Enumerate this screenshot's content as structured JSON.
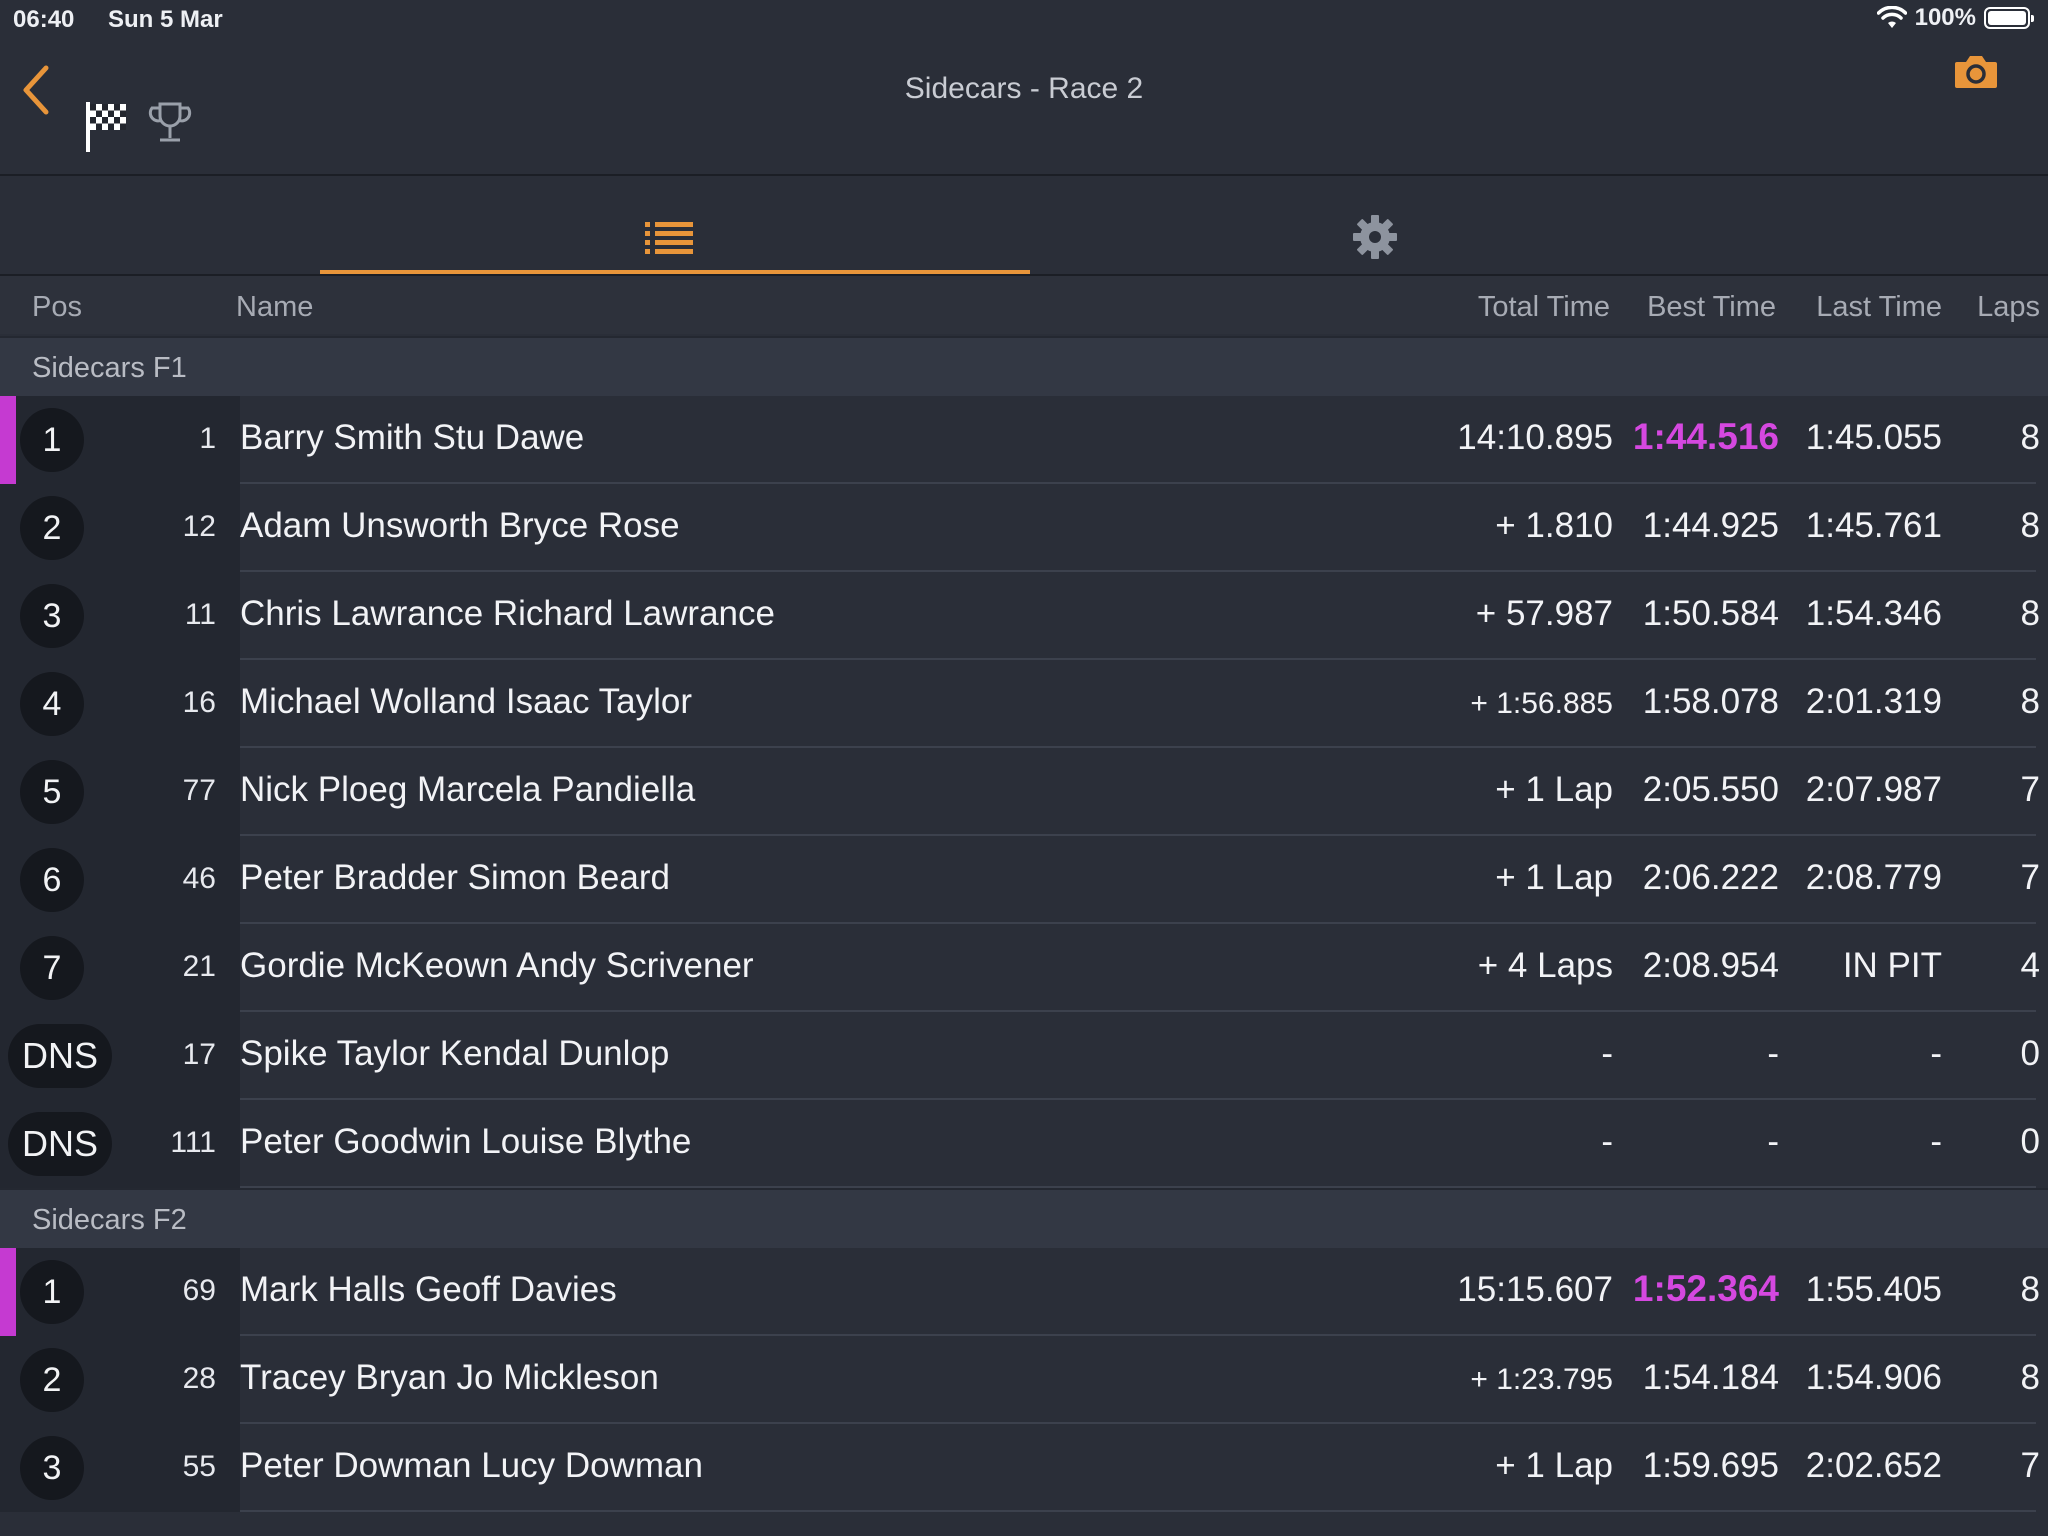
{
  "status": {
    "time": "06:40",
    "date": "Sun 5 Mar",
    "battery": "100%"
  },
  "nav": {
    "title": "Sidecars - Race 2"
  },
  "columns": {
    "pos": "Pos",
    "name": "Name",
    "total": "Total Time",
    "best": "Best Time",
    "last": "Last Time",
    "laps": "Laps"
  },
  "sections": [
    {
      "title": "Sidecars F1",
      "rows": [
        {
          "pos": "1",
          "num": "1",
          "name": "Barry Smith Stu Dawe",
          "total": "14:10.895",
          "best": "1:44.516",
          "last": "1:45.055",
          "laps": "8",
          "fastest": true
        },
        {
          "pos": "2",
          "num": "12",
          "name": "Adam Unsworth Bryce Rose",
          "total": "+ 1.810",
          "best": "1:44.925",
          "last": "1:45.761",
          "laps": "8"
        },
        {
          "pos": "3",
          "num": "11",
          "name": "Chris Lawrance Richard Lawrance",
          "total": "+ 57.987",
          "best": "1:50.584",
          "last": "1:54.346",
          "laps": "8"
        },
        {
          "pos": "4",
          "num": "16",
          "name": "Michael Wolland Isaac  Taylor",
          "total": "+ 1:56.885",
          "best": "1:58.078",
          "last": "2:01.319",
          "laps": "8"
        },
        {
          "pos": "5",
          "num": "77",
          "name": "Nick Ploeg Marcela Pandiella",
          "total": "+ 1 Lap",
          "best": "2:05.550",
          "last": "2:07.987",
          "laps": "7"
        },
        {
          "pos": "6",
          "num": "46",
          "name": "Peter Bradder Simon Beard",
          "total": "+ 1 Lap",
          "best": "2:06.222",
          "last": "2:08.779",
          "laps": "7"
        },
        {
          "pos": "7",
          "num": "21",
          "name": "Gordie McKeown Andy Scrivener",
          "total": "+ 4 Laps",
          "best": "2:08.954",
          "last": "IN PIT",
          "laps": "4"
        },
        {
          "pos": "DNS",
          "num": "17",
          "name": "Spike Taylor Kendal Dunlop",
          "total": "-",
          "best": "-",
          "last": "-",
          "laps": "0"
        },
        {
          "pos": "DNS",
          "num": "111",
          "name": "Peter Goodwin Louise Blythe",
          "total": "-",
          "best": "-",
          "last": "-",
          "laps": "0"
        }
      ]
    },
    {
      "title": "Sidecars F2",
      "rows": [
        {
          "pos": "1",
          "num": "69",
          "name": "Mark Halls Geoff Davies",
          "total": "15:15.607",
          "best": "1:52.364",
          "last": "1:55.405",
          "laps": "8",
          "fastest": true
        },
        {
          "pos": "2",
          "num": "28",
          "name": "Tracey Bryan Jo Mickleson",
          "total": "+ 1:23.795",
          "best": "1:54.184",
          "last": "1:54.906",
          "laps": "8"
        },
        {
          "pos": "3",
          "num": "55",
          "name": "Peter Dowman Lucy Dowman",
          "total": "+ 1 Lap",
          "best": "1:59.695",
          "last": "2:02.652",
          "laps": "7"
        }
      ]
    }
  ],
  "colors": {
    "accent": "#e8953a",
    "fastest": "#d548e0",
    "background": "#2a2e38"
  },
  "icons": {
    "back": "chevron-left-icon",
    "flag": "checkered-flag-icon",
    "trophy": "trophy-icon",
    "camera": "camera-icon",
    "list": "list-icon",
    "settings": "gear-icon"
  }
}
